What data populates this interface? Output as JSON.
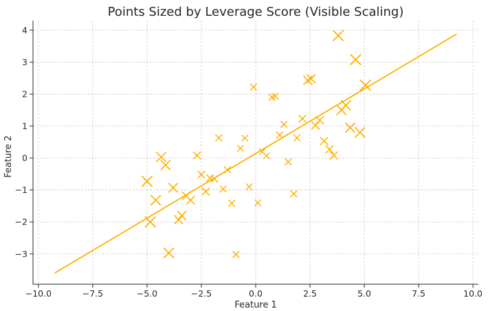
{
  "chart_data": {
    "type": "scatter",
    "title": "Points Sized by Leverage Score (Visible Scaling)",
    "xlabel": "Feature 1",
    "ylabel": "Feature 2",
    "xlim": [
      -10.25,
      10.25
    ],
    "ylim": [
      -3.95,
      4.3
    ],
    "xticks": [
      -10.0,
      -7.5,
      -5.0,
      -2.5,
      0.0,
      2.5,
      5.0,
      7.5,
      10.0
    ],
    "xtick_labels": [
      "−10.0",
      "−7.5",
      "−5.0",
      "−2.5",
      "0.0",
      "2.5",
      "5.0",
      "7.5",
      "10.0"
    ],
    "yticks": [
      -3,
      -2,
      -1,
      0,
      1,
      2,
      3,
      4
    ],
    "ytick_labels": [
      "−3",
      "−2",
      "−1",
      "0",
      "1",
      "2",
      "3",
      "4"
    ],
    "grid": true,
    "color": "#ffb000",
    "marker": "x",
    "points": [
      {
        "x": 3.8,
        "y": 3.83,
        "leverage": 0.16
      },
      {
        "x": 4.6,
        "y": 3.08,
        "leverage": 0.16
      },
      {
        "x": 5.05,
        "y": 2.28,
        "leverage": 0.16
      },
      {
        "x": 2.4,
        "y": 2.43,
        "leverage": 0.12
      },
      {
        "x": 2.55,
        "y": 2.48,
        "leverage": 0.12
      },
      {
        "x": -0.1,
        "y": 2.22,
        "leverage": 0.07
      },
      {
        "x": 0.75,
        "y": 1.9,
        "leverage": 0.07
      },
      {
        "x": 0.9,
        "y": 1.93,
        "leverage": 0.07
      },
      {
        "x": 4.15,
        "y": 1.65,
        "leverage": 0.14
      },
      {
        "x": 3.95,
        "y": 1.5,
        "leverage": 0.14
      },
      {
        "x": 2.15,
        "y": 1.23,
        "leverage": 0.09
      },
      {
        "x": 2.95,
        "y": 1.18,
        "leverage": 0.1
      },
      {
        "x": 2.75,
        "y": 1.02,
        "leverage": 0.1
      },
      {
        "x": 1.3,
        "y": 1.05,
        "leverage": 0.07
      },
      {
        "x": 4.35,
        "y": 0.95,
        "leverage": 0.14
      },
      {
        "x": 4.8,
        "y": 0.8,
        "leverage": 0.15
      },
      {
        "x": 1.1,
        "y": 0.72,
        "leverage": 0.07
      },
      {
        "x": 1.9,
        "y": 0.63,
        "leverage": 0.07
      },
      {
        "x": 3.15,
        "y": 0.53,
        "leverage": 0.1
      },
      {
        "x": 3.4,
        "y": 0.27,
        "leverage": 0.1
      },
      {
        "x": 3.6,
        "y": 0.08,
        "leverage": 0.1
      },
      {
        "x": -1.7,
        "y": 0.63,
        "leverage": 0.07
      },
      {
        "x": -0.5,
        "y": 0.62,
        "leverage": 0.06
      },
      {
        "x": -0.7,
        "y": 0.3,
        "leverage": 0.06
      },
      {
        "x": 0.3,
        "y": 0.2,
        "leverage": 0.06
      },
      {
        "x": 0.5,
        "y": 0.07,
        "leverage": 0.06
      },
      {
        "x": 1.5,
        "y": -0.12,
        "leverage": 0.07
      },
      {
        "x": -4.35,
        "y": 0.03,
        "leverage": 0.14
      },
      {
        "x": -4.15,
        "y": -0.22,
        "leverage": 0.14
      },
      {
        "x": -2.7,
        "y": 0.08,
        "leverage": 0.09
      },
      {
        "x": -2.5,
        "y": -0.52,
        "leverage": 0.09
      },
      {
        "x": -1.3,
        "y": -0.37,
        "leverage": 0.07
      },
      {
        "x": -2.1,
        "y": -0.63,
        "leverage": 0.08
      },
      {
        "x": -1.9,
        "y": -0.65,
        "leverage": 0.08
      },
      {
        "x": -5.0,
        "y": -0.73,
        "leverage": 0.16
      },
      {
        "x": -3.8,
        "y": -0.93,
        "leverage": 0.13
      },
      {
        "x": -1.5,
        "y": -0.97,
        "leverage": 0.07
      },
      {
        "x": -2.3,
        "y": -1.05,
        "leverage": 0.09
      },
      {
        "x": -0.3,
        "y": -0.9,
        "leverage": 0.06
      },
      {
        "x": -3.2,
        "y": -1.18,
        "leverage": 0.1
      },
      {
        "x": -3.0,
        "y": -1.32,
        "leverage": 0.11
      },
      {
        "x": -4.6,
        "y": -1.32,
        "leverage": 0.15
      },
      {
        "x": -1.1,
        "y": -1.42,
        "leverage": 0.07
      },
      {
        "x": 0.1,
        "y": -1.4,
        "leverage": 0.06
      },
      {
        "x": 1.75,
        "y": -1.12,
        "leverage": 0.07
      },
      {
        "x": -3.4,
        "y": -1.8,
        "leverage": 0.12
      },
      {
        "x": -3.55,
        "y": -1.93,
        "leverage": 0.12
      },
      {
        "x": -4.85,
        "y": -2.0,
        "leverage": 0.16
      },
      {
        "x": -4.0,
        "y": -2.97,
        "leverage": 0.15
      },
      {
        "x": -0.9,
        "y": -3.02,
        "leverage": 0.07
      }
    ],
    "fit_line": {
      "x": [
        -9.25,
        9.25
      ],
      "y": [
        -3.6,
        3.88
      ]
    }
  }
}
